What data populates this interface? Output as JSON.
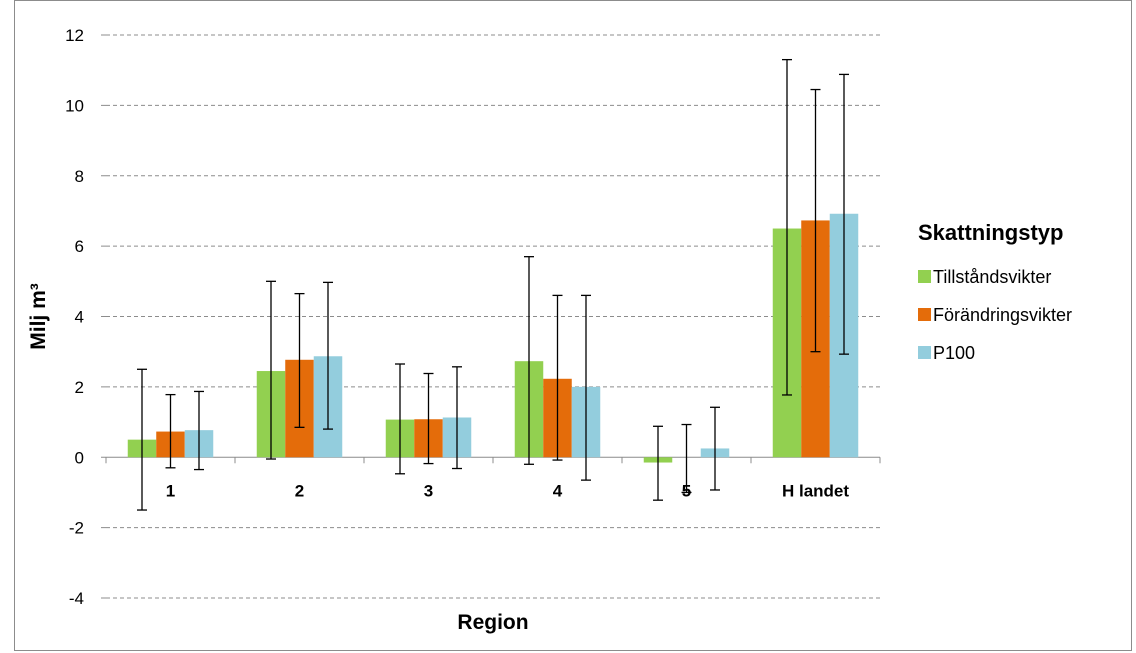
{
  "chart_data": {
    "type": "bar",
    "categories": [
      "1",
      "2",
      "3",
      "4",
      "5",
      "H landet"
    ],
    "series": [
      {
        "name": "Tillståndsvikter",
        "color": "#92d050",
        "values": [
          0.5,
          2.45,
          1.07,
          2.73,
          -0.15,
          6.5
        ],
        "err_low": [
          -1.5,
          -0.05,
          -0.47,
          -0.2,
          -1.22,
          1.77
        ],
        "err_high": [
          2.5,
          5.0,
          2.65,
          5.7,
          0.88,
          11.3
        ]
      },
      {
        "name": "Förändringsvikter",
        "color": "#e46c0a",
        "values": [
          0.73,
          2.77,
          1.08,
          2.23,
          0.0,
          6.73
        ],
        "err_low": [
          -0.3,
          0.85,
          -0.18,
          -0.08,
          -1.0,
          3.0
        ],
        "err_high": [
          1.78,
          4.65,
          2.38,
          4.6,
          0.93,
          10.45
        ]
      },
      {
        "name": "P100",
        "color": "#93cddd",
        "values": [
          0.77,
          2.87,
          1.13,
          2.0,
          0.25,
          6.92
        ],
        "err_low": [
          -0.35,
          0.8,
          -0.32,
          -0.65,
          -0.93,
          2.93
        ],
        "err_high": [
          1.87,
          4.97,
          2.57,
          4.6,
          1.42,
          10.88
        ]
      }
    ],
    "xlabel": "Region",
    "ylabel": "Milj m³",
    "ylim": [
      -4,
      12
    ],
    "yticks": [
      "-4",
      "-2",
      "0",
      "2",
      "4",
      "6",
      "8",
      "10",
      "12"
    ],
    "grid": true,
    "legend": {
      "title": "Skattningstyp",
      "placement": "right"
    }
  }
}
